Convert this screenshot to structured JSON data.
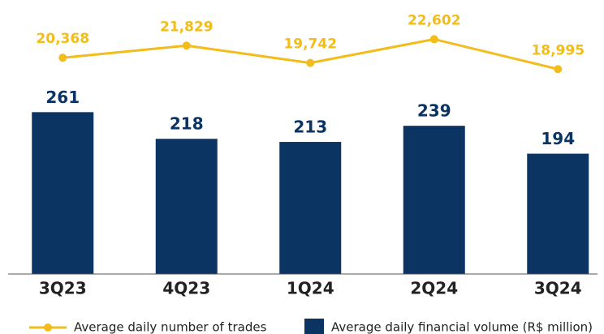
{
  "chart_data": {
    "type": "bar",
    "categories": [
      "3Q23",
      "4Q23",
      "1Q24",
      "2Q24",
      "3Q24"
    ],
    "series": [
      {
        "name": "Average daily number of trades",
        "type": "line",
        "axis": "y2",
        "color": "#f2bc1b",
        "values": [
          20368,
          21829,
          19742,
          22602,
          18995
        ],
        "value_labels": [
          "20,368",
          "21,829",
          "19,742",
          "22,602",
          "18,995"
        ]
      },
      {
        "name": "Average daily financial volume (R$ million)",
        "type": "bar",
        "color": "#0b3463",
        "values": [
          261,
          218,
          213,
          239,
          194
        ]
      }
    ],
    "ylim": [
      0,
      400
    ],
    "y2lim": [
      -5700,
      24200
    ]
  }
}
